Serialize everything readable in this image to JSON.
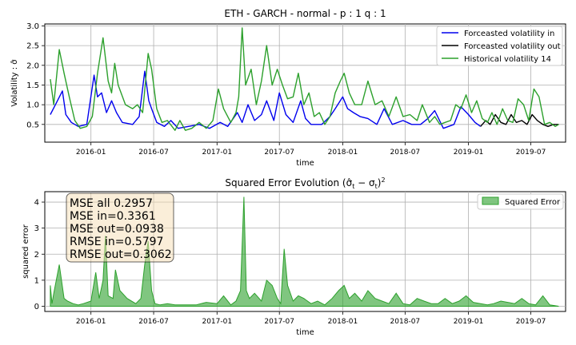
{
  "chart_data": [
    {
      "type": "line",
      "title": "ETH - GARCH - normal - p : 1 q : 1",
      "xlabel": "time",
      "ylabel": "Volatility : σ̂",
      "x_range": [
        "2015-08-20",
        "2019-10-10"
      ],
      "ylim": [
        0.05,
        3.05
      ],
      "yticks": [
        0.5,
        1.0,
        1.5,
        2.0,
        2.5,
        3.0
      ],
      "xticks": [
        "2016-01",
        "2016-07",
        "2017-01",
        "2017-07",
        "2018-01",
        "2018-07",
        "2019-01",
        "2019-07"
      ],
      "grid": true,
      "legend": "top-right",
      "series": [
        {
          "name": "Forceasted volatility in",
          "color": "#0000ee",
          "x": [
            "2015-09-05",
            "2015-09-20",
            "2015-10-10",
            "2015-10-20",
            "2015-11-05",
            "2015-11-25",
            "2015-12-20",
            "2016-01-10",
            "2016-01-20",
            "2016-02-01",
            "2016-02-15",
            "2016-03-01",
            "2016-03-15",
            "2016-04-01",
            "2016-05-01",
            "2016-05-20",
            "2016-06-05",
            "2016-06-17",
            "2016-06-25",
            "2016-07-10",
            "2016-08-01",
            "2016-08-20",
            "2016-09-10",
            "2016-10-10",
            "2016-11-10",
            "2016-12-10",
            "2017-01-10",
            "2017-02-01",
            "2017-03-01",
            "2017-03-15",
            "2017-04-01",
            "2017-04-20",
            "2017-05-10",
            "2017-05-25",
            "2017-06-15",
            "2017-07-01",
            "2017-07-20",
            "2017-08-10",
            "2017-09-01",
            "2017-09-15",
            "2017-10-01",
            "2017-11-01",
            "2017-11-25",
            "2017-12-10",
            "2018-01-01",
            "2018-01-15",
            "2018-02-01",
            "2018-02-20",
            "2018-03-15",
            "2018-04-10",
            "2018-05-01",
            "2018-05-25",
            "2018-06-25",
            "2018-07-20",
            "2018-08-15",
            "2018-09-05",
            "2018-09-25",
            "2018-10-20",
            "2018-11-20",
            "2018-12-10",
            "2019-01-01",
            "2019-01-20",
            "2019-02-05"
          ],
          "y": [
            0.75,
            1.0,
            1.35,
            0.75,
            0.55,
            0.45,
            0.5,
            1.75,
            1.2,
            1.3,
            0.8,
            1.1,
            0.8,
            0.55,
            0.5,
            0.7,
            1.85,
            1.1,
            0.9,
            0.55,
            0.45,
            0.6,
            0.4,
            0.45,
            0.5,
            0.4,
            0.55,
            0.45,
            0.8,
            0.55,
            1.0,
            0.6,
            0.75,
            1.1,
            0.6,
            1.3,
            0.75,
            0.55,
            1.1,
            0.65,
            0.5,
            0.5,
            0.7,
            0.9,
            1.2,
            0.9,
            0.8,
            0.7,
            0.65,
            0.5,
            0.9,
            0.5,
            0.6,
            0.5,
            0.5,
            0.65,
            0.85,
            0.4,
            0.5,
            0.95,
            0.75,
            0.55,
            0.45
          ]
        },
        {
          "name": "Forceasted volatility out",
          "color": "#000000",
          "x": [
            "2019-02-05",
            "2019-02-20",
            "2019-03-05",
            "2019-03-20",
            "2019-04-05",
            "2019-04-20",
            "2019-05-05",
            "2019-05-20",
            "2019-06-05",
            "2019-06-20",
            "2019-07-05",
            "2019-07-20",
            "2019-08-05",
            "2019-08-20",
            "2019-09-05",
            "2019-09-20"
          ],
          "y": [
            0.45,
            0.6,
            0.5,
            0.75,
            0.55,
            0.5,
            0.75,
            0.55,
            0.6,
            0.5,
            0.75,
            0.6,
            0.5,
            0.45,
            0.5,
            0.5
          ]
        },
        {
          "name": "Historical volatility 14",
          "color": "#2ca02c",
          "x": [
            "2015-09-05",
            "2015-09-15",
            "2015-10-01",
            "2015-10-15",
            "2015-10-30",
            "2015-11-15",
            "2015-12-01",
            "2015-12-20",
            "2016-01-05",
            "2016-01-20",
            "2016-02-05",
            "2016-02-20",
            "2016-03-01",
            "2016-03-10",
            "2016-03-20",
            "2016-04-10",
            "2016-05-01",
            "2016-05-15",
            "2016-05-30",
            "2016-06-15",
            "2016-06-25",
            "2016-07-10",
            "2016-07-25",
            "2016-08-10",
            "2016-09-01",
            "2016-09-15",
            "2016-10-01",
            "2016-10-20",
            "2016-11-10",
            "2016-12-01",
            "2016-12-20",
            "2017-01-05",
            "2017-01-20",
            "2017-02-10",
            "2017-02-25",
            "2017-03-05",
            "2017-03-15",
            "2017-03-25",
            "2017-04-10",
            "2017-04-25",
            "2017-05-10",
            "2017-05-25",
            "2017-06-10",
            "2017-06-25",
            "2017-07-10",
            "2017-07-25",
            "2017-08-10",
            "2017-08-25",
            "2017-09-10",
            "2017-09-25",
            "2017-10-10",
            "2017-10-25",
            "2017-11-10",
            "2017-11-25",
            "2017-12-10",
            "2017-12-25",
            "2018-01-05",
            "2018-01-20",
            "2018-02-05",
            "2018-02-25",
            "2018-03-15",
            "2018-04-05",
            "2018-04-25",
            "2018-05-15",
            "2018-06-05",
            "2018-06-25",
            "2018-07-15",
            "2018-08-05",
            "2018-08-20",
            "2018-09-10",
            "2018-09-25",
            "2018-10-10",
            "2018-10-25",
            "2018-11-10",
            "2018-11-25",
            "2018-12-10",
            "2018-12-25",
            "2019-01-10",
            "2019-01-25",
            "2019-02-10",
            "2019-02-25",
            "2019-03-10",
            "2019-03-25",
            "2019-04-10",
            "2019-04-25",
            "2019-05-10",
            "2019-05-25",
            "2019-06-10",
            "2019-06-25",
            "2019-07-10",
            "2019-07-25",
            "2019-08-10",
            "2019-08-25",
            "2019-09-10",
            "2019-09-20"
          ],
          "y": [
            1.65,
            1.0,
            2.4,
            1.8,
            1.2,
            0.6,
            0.4,
            0.45,
            0.7,
            1.8,
            2.7,
            1.6,
            1.3,
            2.05,
            1.5,
            1.0,
            0.9,
            1.0,
            0.8,
            2.3,
            1.9,
            0.9,
            0.55,
            0.6,
            0.35,
            0.6,
            0.35,
            0.4,
            0.55,
            0.4,
            0.6,
            1.4,
            0.9,
            0.55,
            0.8,
            1.2,
            2.95,
            1.5,
            1.9,
            1.0,
            1.6,
            2.5,
            1.5,
            1.9,
            1.5,
            1.15,
            1.2,
            1.8,
            1.0,
            1.3,
            0.7,
            0.8,
            0.5,
            0.7,
            1.3,
            1.6,
            1.8,
            1.3,
            1.0,
            1.0,
            1.6,
            1.0,
            1.1,
            0.7,
            1.2,
            0.7,
            0.75,
            0.6,
            1.0,
            0.55,
            0.7,
            0.5,
            0.55,
            0.6,
            1.0,
            0.9,
            1.25,
            0.8,
            1.1,
            0.65,
            0.55,
            0.8,
            0.5,
            0.9,
            0.6,
            0.55,
            1.15,
            1.0,
            0.6,
            1.4,
            1.2,
            0.5,
            0.55,
            0.45,
            0.5
          ]
        }
      ]
    },
    {
      "type": "area",
      "title": "Squared Error Evolution (σ̂",
      "title_parts": {
        "sub_t": "t",
        "minus": " − σ",
        "close": ")",
        "exp": "2"
      },
      "xlabel": "time",
      "ylabel": "squared error",
      "x_range": [
        "2015-08-20",
        "2019-10-10"
      ],
      "ylim": [
        -0.2,
        4.4
      ],
      "yticks": [
        0,
        1,
        2,
        3,
        4
      ],
      "xticks": [
        "2016-01",
        "2016-07",
        "2017-01",
        "2017-07",
        "2018-01",
        "2018-07",
        "2019-01",
        "2019-07"
      ],
      "grid": true,
      "legend": "top-right",
      "series": [
        {
          "name": "Squared Error",
          "color": "#2ca02c",
          "x": [
            "2015-09-05",
            "2015-09-10",
            "2015-09-15",
            "2015-10-01",
            "2015-10-15",
            "2015-10-25",
            "2015-11-10",
            "2015-11-25",
            "2015-12-10",
            "2016-01-01",
            "2016-01-15",
            "2016-01-25",
            "2016-02-05",
            "2016-02-12",
            "2016-02-20",
            "2016-03-05",
            "2016-03-12",
            "2016-03-25",
            "2016-04-15",
            "2016-05-10",
            "2016-05-25",
            "2016-06-05",
            "2016-06-15",
            "2016-06-25",
            "2016-07-05",
            "2016-07-20",
            "2016-08-10",
            "2016-09-01",
            "2016-10-01",
            "2016-11-01",
            "2016-12-01",
            "2017-01-01",
            "2017-01-20",
            "2017-02-10",
            "2017-02-25",
            "2017-03-10",
            "2017-03-20",
            "2017-03-27",
            "2017-04-05",
            "2017-04-20",
            "2017-05-10",
            "2017-05-25",
            "2017-06-10",
            "2017-06-25",
            "2017-07-05",
            "2017-07-15",
            "2017-07-25",
            "2017-08-10",
            "2017-08-25",
            "2017-09-10",
            "2017-10-01",
            "2017-10-20",
            "2017-11-10",
            "2017-12-01",
            "2017-12-20",
            "2018-01-05",
            "2018-01-20",
            "2018-02-05",
            "2018-02-25",
            "2018-03-15",
            "2018-04-05",
            "2018-04-25",
            "2018-05-15",
            "2018-06-05",
            "2018-06-25",
            "2018-07-15",
            "2018-08-05",
            "2018-08-25",
            "2018-09-15",
            "2018-10-05",
            "2018-10-25",
            "2018-11-15",
            "2018-12-05",
            "2018-12-25",
            "2019-01-15",
            "2019-02-05",
            "2019-02-25",
            "2019-03-15",
            "2019-04-05",
            "2019-04-25",
            "2019-05-15",
            "2019-06-05",
            "2019-06-25",
            "2019-07-15",
            "2019-08-05",
            "2019-08-25",
            "2019-09-20"
          ],
          "y": [
            0.8,
            0.1,
            0.5,
            1.6,
            0.3,
            0.2,
            0.1,
            0.05,
            0.1,
            0.2,
            1.3,
            0.3,
            1.0,
            2.7,
            0.4,
            0.3,
            1.4,
            0.6,
            0.3,
            0.1,
            0.3,
            1.6,
            2.5,
            0.6,
            0.1,
            0.05,
            0.1,
            0.05,
            0.05,
            0.05,
            0.15,
            0.1,
            0.4,
            0.05,
            0.2,
            0.6,
            4.2,
            0.6,
            0.3,
            0.5,
            0.2,
            1.0,
            0.8,
            0.3,
            0.1,
            2.2,
            0.8,
            0.2,
            0.4,
            0.3,
            0.1,
            0.2,
            0.05,
            0.3,
            0.6,
            0.8,
            0.3,
            0.5,
            0.2,
            0.6,
            0.3,
            0.2,
            0.1,
            0.5,
            0.1,
            0.05,
            0.3,
            0.2,
            0.1,
            0.1,
            0.3,
            0.1,
            0.2,
            0.4,
            0.15,
            0.1,
            0.05,
            0.1,
            0.2,
            0.15,
            0.1,
            0.3,
            0.1,
            0.05,
            0.4,
            0.05,
            0.0
          ]
        }
      ],
      "annotation": [
        "MSE all 0.2957",
        "MSE in=0.3361",
        "MSE out=0.0938",
        "RMSE in=0.5797",
        "RMSE out=0.3062"
      ]
    }
  ]
}
